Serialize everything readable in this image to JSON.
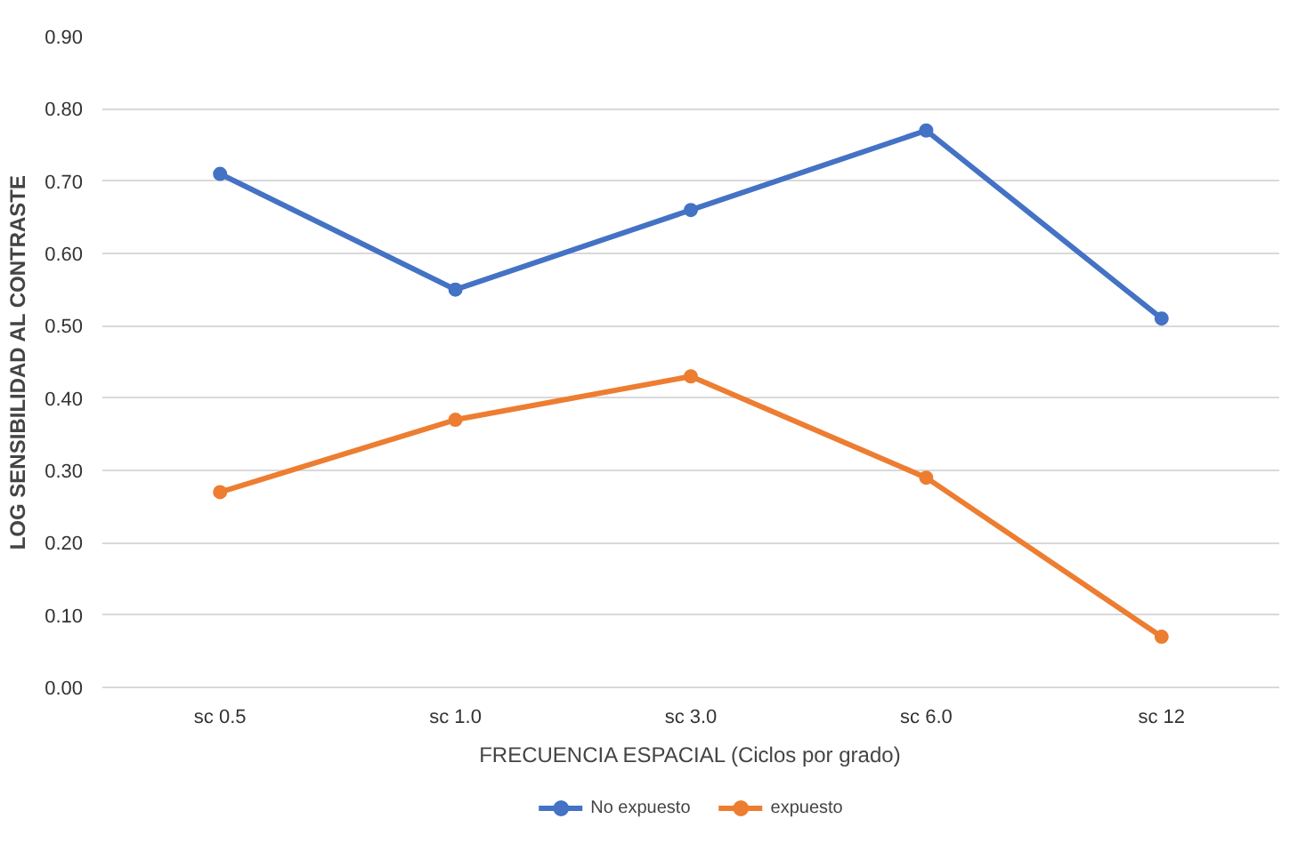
{
  "chart_data": {
    "type": "line",
    "xlabel": "FRECUENCIA ESPACIAL (Ciclos por grado)",
    "ylabel": "LOG SENSIBILIDAD AL CONTRASTE",
    "categories": [
      "sc 0.5",
      "sc 1.0",
      "sc 3.0",
      "sc 6.0",
      "sc 12"
    ],
    "series": [
      {
        "name": "No expuesto",
        "color": "#4472c4",
        "values": [
          0.71,
          0.55,
          0.66,
          0.77,
          0.51
        ]
      },
      {
        "name": "expuesto",
        "color": "#ed7d31",
        "values": [
          0.27,
          0.37,
          0.43,
          0.29,
          0.07
        ]
      }
    ],
    "ylim": [
      0,
      0.9
    ],
    "yticks": [
      {
        "value": 0,
        "label": "0.00"
      },
      {
        "value": 0.1,
        "label": "0.10"
      },
      {
        "value": 0.2,
        "label": "0.20"
      },
      {
        "value": 0.3,
        "label": "0.30"
      },
      {
        "value": 0.4,
        "label": "0.40"
      },
      {
        "value": 0.5,
        "label": "0.50"
      },
      {
        "value": 0.6,
        "label": "0.60"
      },
      {
        "value": 0.7,
        "label": "0.70"
      },
      {
        "value": 0.8,
        "label": "0.80"
      },
      {
        "value": 0.9,
        "label": "0.90"
      }
    ],
    "grid": "y",
    "legend": "bottom",
    "marker": "circle",
    "line_style": "solid"
  }
}
